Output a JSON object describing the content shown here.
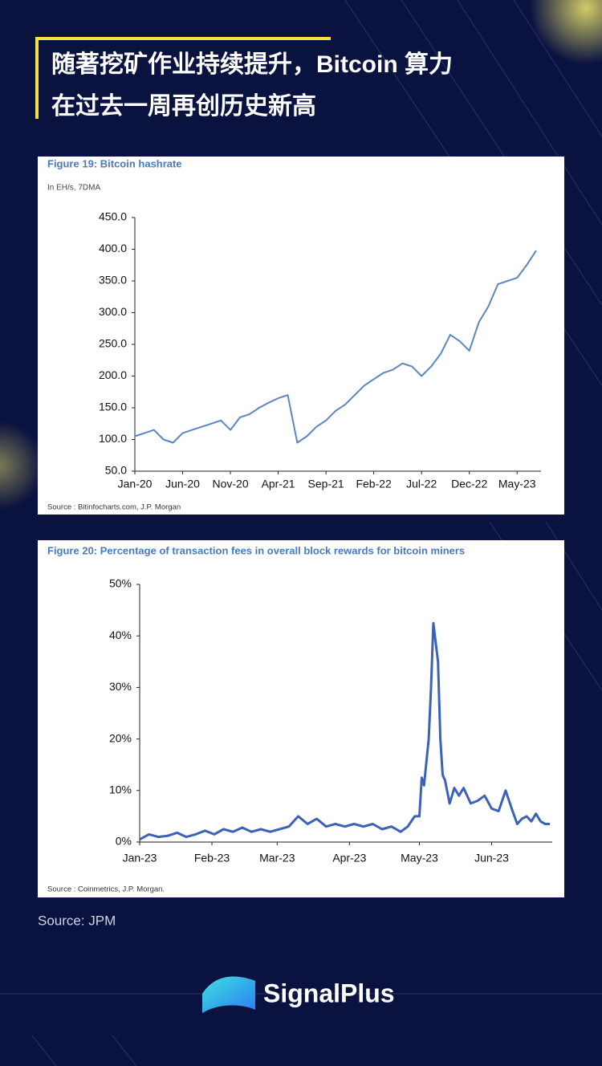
{
  "header": {
    "title_lines": [
      "随著挖矿作业持续提升，Bitcoin 算力",
      "在过去一周再创历史新高"
    ]
  },
  "chart_data": [
    {
      "type": "line",
      "title": "Figure 19: Bitcoin hashrate",
      "subtitle": "In EH/s, 7DMA",
      "source": "Source : Bitinfocharts.com, J.P. Morgan",
      "categories": [
        "Jan-20",
        null,
        null,
        null,
        null,
        "Jun-20",
        null,
        null,
        null,
        null,
        "Nov-20",
        null,
        null,
        null,
        null,
        "Apr-21",
        null,
        null,
        null,
        null,
        "Sep-21",
        null,
        null,
        null,
        null,
        "Feb-22",
        null,
        null,
        null,
        null,
        "Jul-22",
        null,
        null,
        null,
        null,
        "Dec-22",
        null,
        null,
        null,
        null,
        "May-23",
        null,
        null
      ],
      "values": [
        105,
        110,
        115,
        100,
        95,
        110,
        115,
        120,
        125,
        130,
        115,
        135,
        140,
        150,
        158,
        165,
        170,
        95,
        105,
        120,
        130,
        145,
        155,
        170,
        185,
        195,
        205,
        210,
        220,
        215,
        200,
        215,
        235,
        265,
        255,
        240,
        285,
        310,
        345,
        350,
        355,
        375,
        398
      ],
      "color": "#5b86c0",
      "ylim": [
        50,
        450
      ],
      "yticks": [
        {
          "value": 50,
          "label": "50.0"
        },
        {
          "value": 100,
          "label": "100.0"
        },
        {
          "value": 150,
          "label": "150.0"
        },
        {
          "value": 200,
          "label": "200.0"
        },
        {
          "value": 250,
          "label": "250.0"
        },
        {
          "value": 300,
          "label": "300.0"
        },
        {
          "value": 350,
          "label": "350.0"
        },
        {
          "value": 400,
          "label": "400.0"
        },
        {
          "value": 450,
          "label": "450.0"
        }
      ],
      "grid": false
    },
    {
      "type": "line",
      "title": "Figure 20: Percentage of transaction fees in overall block rewards for bitcoin miners",
      "source": "Source : Coinmetrics, J.P. Morgan.",
      "x": [
        0,
        4,
        8,
        12,
        16,
        20,
        24,
        28,
        32,
        36,
        40,
        44,
        48,
        52,
        56,
        60,
        64,
        68,
        72,
        76,
        80,
        84,
        88,
        92,
        96,
        100,
        104,
        108,
        112,
        115,
        118,
        120,
        121,
        122,
        124,
        125,
        126,
        128,
        129,
        130,
        131,
        133,
        135,
        137,
        139,
        142,
        145,
        148,
        151,
        154,
        157,
        160,
        162,
        164,
        166,
        168,
        170,
        172,
        174,
        176
      ],
      "values": [
        0.5,
        1.5,
        1.0,
        1.2,
        1.8,
        1.0,
        1.5,
        2.2,
        1.5,
        2.5,
        2.0,
        2.8,
        2.0,
        2.5,
        2.0,
        2.5,
        3.0,
        5.0,
        3.5,
        4.5,
        3.0,
        3.5,
        3.0,
        3.5,
        3.0,
        3.5,
        2.5,
        3.0,
        2.0,
        3.0,
        5.0,
        5.0,
        12.5,
        11.0,
        20.0,
        30.0,
        42.5,
        35.0,
        20.0,
        13.0,
        12.0,
        7.5,
        10.5,
        9.0,
        10.5,
        7.5,
        8.0,
        9.0,
        6.5,
        6.0,
        10.0,
        6.0,
        3.5,
        4.5,
        5.0,
        4.0,
        5.5,
        4.0,
        3.5,
        3.5
      ],
      "color": "#3b62b8",
      "xlim": [
        0,
        177
      ],
      "xticks": [
        {
          "value": 0,
          "label": "Jan-23"
        },
        {
          "value": 31,
          "label": "Feb-23"
        },
        {
          "value": 59,
          "label": "Mar-23"
        },
        {
          "value": 90,
          "label": "Apr-23"
        },
        {
          "value": 120,
          "label": "May-23"
        },
        {
          "value": 151,
          "label": "Jun-23"
        }
      ],
      "ylim": [
        0,
        50
      ],
      "yticks": [
        {
          "value": 0,
          "label": "0%"
        },
        {
          "value": 10,
          "label": "10%"
        },
        {
          "value": 20,
          "label": "20%"
        },
        {
          "value": 30,
          "label": "30%"
        },
        {
          "value": 40,
          "label": "40%"
        },
        {
          "value": 50,
          "label": "50%"
        }
      ],
      "grid": false
    }
  ],
  "source": "Source: JPM",
  "brand": "SignalPlus"
}
